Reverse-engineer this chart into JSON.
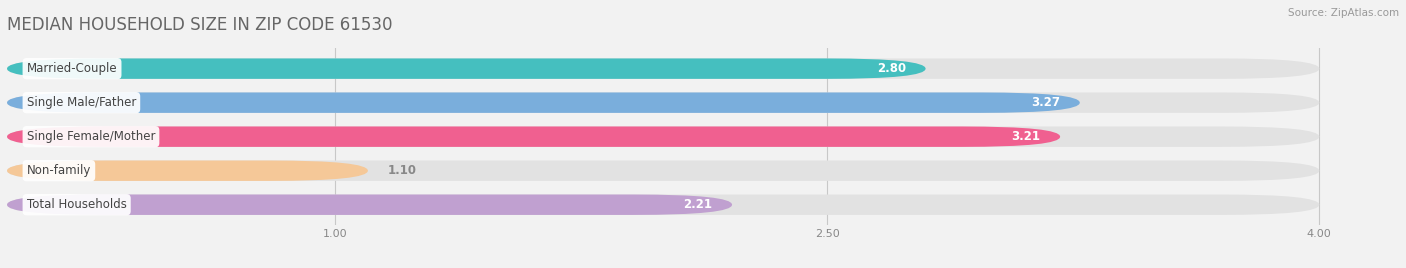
{
  "title": "MEDIAN HOUSEHOLD SIZE IN ZIP CODE 61530",
  "source": "Source: ZipAtlas.com",
  "categories": [
    "Married-Couple",
    "Single Male/Father",
    "Single Female/Mother",
    "Non-family",
    "Total Households"
  ],
  "values": [
    2.8,
    3.27,
    3.21,
    1.1,
    2.21
  ],
  "bar_colors": [
    "#45bfbf",
    "#7aaedc",
    "#f06090",
    "#f5c898",
    "#c0a0d0"
  ],
  "background_color": "#f2f2f2",
  "bar_background_color": "#e2e2e2",
  "xlim": [
    0.0,
    4.2
  ],
  "xmin": 0.0,
  "xmax": 4.0,
  "xticks": [
    1.0,
    2.5,
    4.0
  ],
  "title_fontsize": 12,
  "label_fontsize": 8.5,
  "value_fontsize": 8.5,
  "source_fontsize": 7.5
}
